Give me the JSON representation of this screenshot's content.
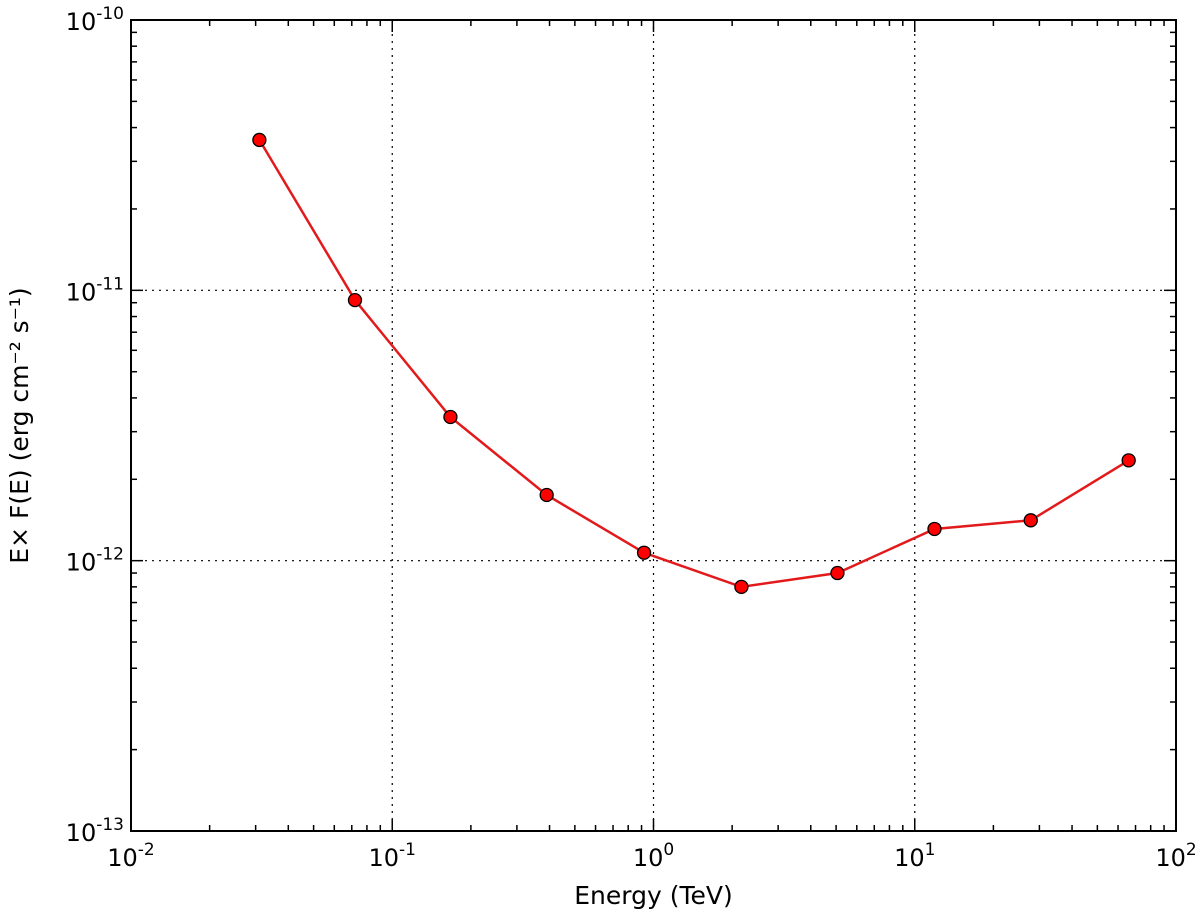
{
  "chart_data": {
    "type": "line",
    "xlabel": "Energy (TeV)",
    "ylabel": "E× F(E) (erg cm⁻² s⁻¹)",
    "x_scale": "log",
    "y_scale": "log",
    "xlim": [
      0.01,
      100
    ],
    "ylim": [
      1e-13,
      1e-10
    ],
    "x_ticks": [
      {
        "value": 0.01,
        "base": "10",
        "exp": "-2"
      },
      {
        "value": 0.1,
        "base": "10",
        "exp": "-1"
      },
      {
        "value": 1,
        "base": "10",
        "exp": "0"
      },
      {
        "value": 10,
        "base": "10",
        "exp": "1"
      },
      {
        "value": 100,
        "base": "10",
        "exp": "2"
      }
    ],
    "y_ticks": [
      {
        "value": 1e-13,
        "base": "10",
        "exp": "-13"
      },
      {
        "value": 1e-12,
        "base": "10",
        "exp": "-12"
      },
      {
        "value": 1e-11,
        "base": "10",
        "exp": "-11"
      },
      {
        "value": 1e-10,
        "base": "10",
        "exp": "-10"
      }
    ],
    "grid": true,
    "series": [
      {
        "color": "#e31a1c",
        "marker_color": "#ff0000",
        "x": [
          0.031,
          0.072,
          0.167,
          0.39,
          0.92,
          2.17,
          5.06,
          11.9,
          27.8,
          65.9
        ],
        "y": [
          3.6e-11,
          9.2e-12,
          3.4e-12,
          1.75e-12,
          1.07e-12,
          8e-13,
          9e-13,
          1.31e-12,
          1.41e-12,
          2.35e-12
        ]
      }
    ]
  }
}
